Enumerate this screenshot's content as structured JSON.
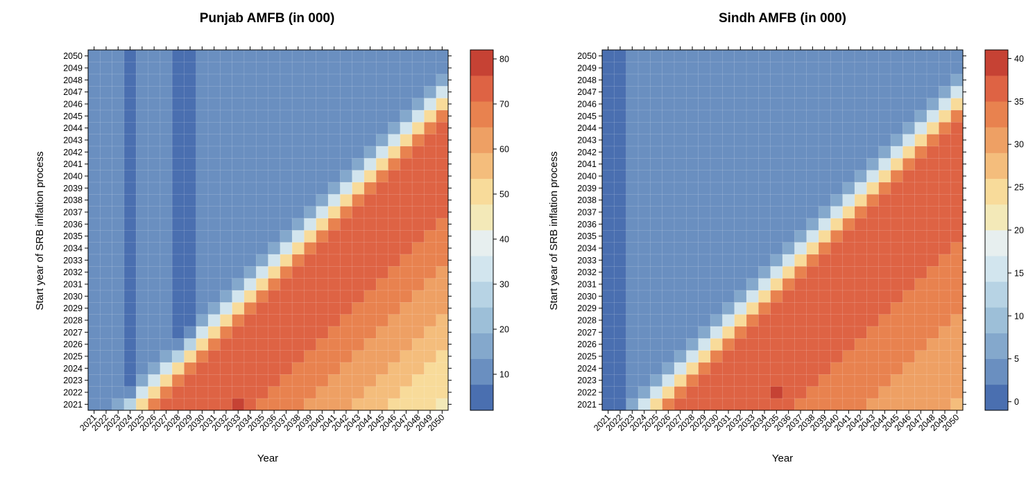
{
  "chart_data": [
    {
      "type": "heatmap",
      "title": "Punjab AMFB (in 000)",
      "xlabel": "Year",
      "ylabel": "Start year of SRB inflation process",
      "x": [
        2021,
        2022,
        2023,
        2024,
        2025,
        2026,
        2027,
        2028,
        2029,
        2030,
        2031,
        2032,
        2033,
        2034,
        2035,
        2036,
        2037,
        2038,
        2039,
        2040,
        2041,
        2042,
        2043,
        2044,
        2045,
        2046,
        2047,
        2048,
        2049,
        2050
      ],
      "y": [
        2021,
        2022,
        2023,
        2024,
        2025,
        2026,
        2027,
        2028,
        2029,
        2030,
        2031,
        2032,
        2033,
        2034,
        2035,
        2036,
        2037,
        2038,
        2039,
        2040,
        2041,
        2042,
        2043,
        2044,
        2045,
        2046,
        2047,
        2048,
        2049,
        2050
      ],
      "x_tick_labels": [
        "2021",
        "2022",
        "2023",
        "2024",
        "2025",
        "2026",
        "2027",
        "2028",
        "2029",
        "2030",
        "2031",
        "2032",
        "2033",
        "2034",
        "2035",
        "2036",
        "2037",
        "2038",
        "2039",
        "2040",
        "2041",
        "2042",
        "2043",
        "2044",
        "2045",
        "2046",
        "2047",
        "2048",
        "2049",
        "2050"
      ],
      "y_tick_labels": [
        "2021",
        "2022",
        "2023",
        "2024",
        "2025",
        "2026",
        "2027",
        "2028",
        "2029",
        "2030",
        "2031",
        "2032",
        "2033",
        "2034",
        "2035",
        "2036",
        "2037",
        "2038",
        "2039",
        "2040",
        "2041",
        "2042",
        "2043",
        "2044",
        "2045",
        "2046",
        "2047",
        "2048",
        "2049",
        "2050"
      ],
      "color_range": [
        2,
        82
      ],
      "colorbar_ticks": [
        10,
        20,
        30,
        40,
        50,
        60,
        70,
        80
      ],
      "colorbar_tick_labels": [
        "10",
        "20",
        "30",
        "40",
        "50",
        "60",
        "70",
        "80"
      ],
      "base_level": 10,
      "low_columns": [
        2024,
        2028,
        2029
      ],
      "low_level": 5,
      "peak_level": 72,
      "peak_cell": {
        "x": 2033,
        "y": 2021,
        "value": 81
      },
      "transition_width": 5,
      "late_decline": 0.8
    },
    {
      "type": "heatmap",
      "title": "Sindh AMFB (in 000)",
      "xlabel": "Year",
      "ylabel": "Start year of SRB inflation process",
      "x": [
        2021,
        2022,
        2023,
        2024,
        2025,
        2026,
        2027,
        2028,
        2029,
        2030,
        2031,
        2032,
        2033,
        2034,
        2035,
        2036,
        2037,
        2038,
        2039,
        2040,
        2041,
        2042,
        2043,
        2044,
        2045,
        2046,
        2047,
        2048,
        2049,
        2050
      ],
      "y": [
        2021,
        2022,
        2023,
        2024,
        2025,
        2026,
        2027,
        2028,
        2029,
        2030,
        2031,
        2032,
        2033,
        2034,
        2035,
        2036,
        2037,
        2038,
        2039,
        2040,
        2041,
        2042,
        2043,
        2044,
        2045,
        2046,
        2047,
        2048,
        2049,
        2050
      ],
      "x_tick_labels": [
        "2021",
        "2022",
        "2023",
        "2024",
        "2025",
        "2026",
        "2027",
        "2028",
        "2029",
        "2030",
        "2031",
        "2032",
        "2033",
        "2034",
        "2035",
        "2036",
        "2037",
        "2038",
        "2039",
        "2040",
        "2041",
        "2042",
        "2043",
        "2044",
        "2045",
        "2046",
        "2047",
        "2048",
        "2049",
        "2050"
      ],
      "y_tick_labels": [
        "2021",
        "2022",
        "2023",
        "2024",
        "2025",
        "2026",
        "2027",
        "2028",
        "2029",
        "2030",
        "2031",
        "2032",
        "2033",
        "2034",
        "2035",
        "2036",
        "2037",
        "2038",
        "2039",
        "2040",
        "2041",
        "2042",
        "2043",
        "2044",
        "2045",
        "2046",
        "2047",
        "2048",
        "2049",
        "2050"
      ],
      "color_range": [
        -1,
        41
      ],
      "colorbar_ticks": [
        0,
        5,
        10,
        15,
        20,
        25,
        30,
        35,
        40
      ],
      "colorbar_tick_labels": [
        "0",
        "5",
        "10",
        "15",
        "20",
        "25",
        "30",
        "35",
        "40"
      ],
      "base_level": 4,
      "low_columns": [
        2021,
        2022
      ],
      "low_level": 1,
      "peak_level": 36,
      "peak_cell": {
        "x": 2035,
        "y": 2022,
        "value": 40
      },
      "transition_width": 5,
      "late_decline": 0.45
    }
  ],
  "palette": [
    "#4a6fb0",
    "#6a8fc0",
    "#84a8cc",
    "#9dbfd8",
    "#b7d3e4",
    "#d2e5ee",
    "#e7efef",
    "#f3e9b8",
    "#f8db9a",
    "#f4bd7c",
    "#eea064",
    "#e8824f",
    "#de6344",
    "#c64234"
  ]
}
